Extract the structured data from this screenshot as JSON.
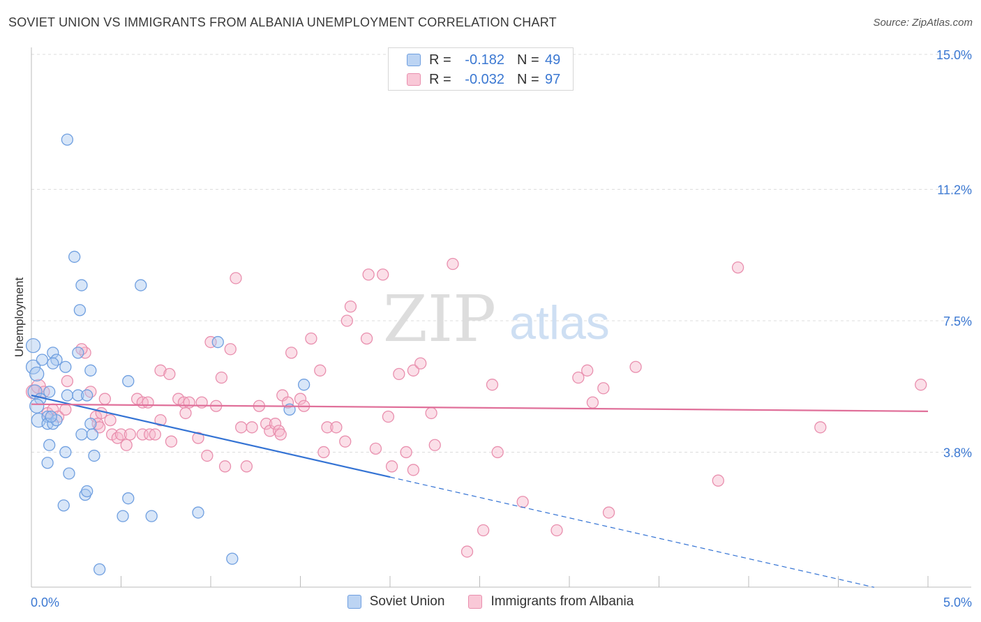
{
  "title": "SOVIET UNION VS IMMIGRANTS FROM ALBANIA UNEMPLOYMENT CORRELATION CHART",
  "source": "Source: ZipAtlas.com",
  "watermark": {
    "zip": "ZIP",
    "atlas": "atlas"
  },
  "legend": {
    "r_label": "R =",
    "n_label": "N =",
    "rows": [
      {
        "r": "-0.182",
        "n": "49"
      },
      {
        "r": "-0.032",
        "n": "97"
      }
    ]
  },
  "chart_data": {
    "type": "scatter",
    "title": "SOVIET UNION VS IMMIGRANTS FROM ALBANIA UNEMPLOYMENT CORRELATION CHART",
    "xlabel": "",
    "ylabel": "Unemployment",
    "xlim": [
      0,
      5.0
    ],
    "ylim": [
      0,
      15.0
    ],
    "x_ticks": [
      0,
      5.0
    ],
    "x_tick_labels": [
      "0.0%",
      "5.0%"
    ],
    "y_ticks": [
      3.8,
      7.5,
      11.2,
      15.0
    ],
    "y_tick_labels": [
      "3.8%",
      "7.5%",
      "11.2%",
      "15.0%"
    ],
    "grid": true,
    "legend_position": "top-center",
    "colors": {
      "soviet_fill": "#a9c8f0",
      "soviet_stroke": "#6f9fe0",
      "soviet_line": "#3473d4",
      "albania_fill": "#f7b8cc",
      "albania_stroke": "#e98fae",
      "albania_line": "#e0709a"
    },
    "series": [
      {
        "name": "Soviet Union",
        "r": -0.182,
        "n": 49,
        "trend": {
          "x1": 0.0,
          "y1": 5.4,
          "x2": 2.0,
          "y2": 3.1,
          "x_dash_end": 4.7
        },
        "points": [
          [
            0.01,
            6.8
          ],
          [
            0.01,
            6.2
          ],
          [
            0.03,
            6.0
          ],
          [
            0.02,
            5.5
          ],
          [
            0.05,
            5.3
          ],
          [
            0.03,
            5.1
          ],
          [
            0.06,
            6.4
          ],
          [
            0.12,
            6.6
          ],
          [
            0.14,
            6.4
          ],
          [
            0.12,
            6.3
          ],
          [
            0.19,
            6.2
          ],
          [
            0.26,
            6.6
          ],
          [
            0.33,
            6.1
          ],
          [
            0.1,
            5.5
          ],
          [
            0.2,
            5.4
          ],
          [
            0.26,
            5.4
          ],
          [
            0.31,
            5.4
          ],
          [
            0.54,
            5.8
          ],
          [
            0.04,
            4.7
          ],
          [
            0.09,
            4.8
          ],
          [
            0.09,
            4.6
          ],
          [
            0.12,
            4.6
          ],
          [
            0.14,
            4.7
          ],
          [
            0.11,
            4.8
          ],
          [
            0.28,
            4.3
          ],
          [
            0.33,
            4.6
          ],
          [
            0.34,
            4.3
          ],
          [
            0.1,
            4.0
          ],
          [
            0.19,
            3.8
          ],
          [
            0.35,
            3.7
          ],
          [
            0.09,
            3.5
          ],
          [
            0.21,
            3.2
          ],
          [
            0.3,
            2.6
          ],
          [
            0.31,
            2.7
          ],
          [
            0.18,
            2.3
          ],
          [
            0.54,
            2.5
          ],
          [
            0.51,
            2.0
          ],
          [
            0.67,
            2.0
          ],
          [
            0.93,
            2.1
          ],
          [
            0.2,
            12.6
          ],
          [
            0.24,
            9.3
          ],
          [
            0.28,
            8.5
          ],
          [
            0.27,
            7.8
          ],
          [
            0.61,
            8.5
          ],
          [
            1.04,
            6.9
          ],
          [
            1.52,
            5.7
          ],
          [
            1.44,
            5.0
          ],
          [
            1.12,
            0.8
          ],
          [
            0.38,
            0.5
          ]
        ]
      },
      {
        "name": "Immigrants from Albania",
        "r": -0.032,
        "n": 97,
        "trend": {
          "x1": 0.0,
          "y1": 5.15,
          "x2": 5.0,
          "y2": 4.95
        },
        "points": [
          [
            0.01,
            5.5
          ],
          [
            0.04,
            5.65
          ],
          [
            0.07,
            5.5
          ],
          [
            0.09,
            4.9
          ],
          [
            0.12,
            5.0
          ],
          [
            0.15,
            4.8
          ],
          [
            0.19,
            5.0
          ],
          [
            0.2,
            5.8
          ],
          [
            0.33,
            5.5
          ],
          [
            0.3,
            6.6
          ],
          [
            0.28,
            6.7
          ],
          [
            0.36,
            4.8
          ],
          [
            0.37,
            4.6
          ],
          [
            0.39,
            4.9
          ],
          [
            0.41,
            5.3
          ],
          [
            0.44,
            4.7
          ],
          [
            0.45,
            4.3
          ],
          [
            0.48,
            4.2
          ],
          [
            0.5,
            4.3
          ],
          [
            0.53,
            4.0
          ],
          [
            0.55,
            4.3
          ],
          [
            0.59,
            5.3
          ],
          [
            0.62,
            5.2
          ],
          [
            0.62,
            4.3
          ],
          [
            0.65,
            5.2
          ],
          [
            0.66,
            4.3
          ],
          [
            0.69,
            4.3
          ],
          [
            0.72,
            4.7
          ],
          [
            0.72,
            6.1
          ],
          [
            0.77,
            6.0
          ],
          [
            0.78,
            4.1
          ],
          [
            0.82,
            5.3
          ],
          [
            0.85,
            5.2
          ],
          [
            0.86,
            4.9
          ],
          [
            0.88,
            5.2
          ],
          [
            0.93,
            4.2
          ],
          [
            0.95,
            5.2
          ],
          [
            0.98,
            3.7
          ],
          [
            1.0,
            6.9
          ],
          [
            1.03,
            5.1
          ],
          [
            1.06,
            5.9
          ],
          [
            1.08,
            3.4
          ],
          [
            1.11,
            6.7
          ],
          [
            1.14,
            8.7
          ],
          [
            1.17,
            4.5
          ],
          [
            1.2,
            3.4
          ],
          [
            1.23,
            4.5
          ],
          [
            1.27,
            5.1
          ],
          [
            1.31,
            4.6
          ],
          [
            1.33,
            4.4
          ],
          [
            1.36,
            4.6
          ],
          [
            1.38,
            4.4
          ],
          [
            1.39,
            4.3
          ],
          [
            1.4,
            5.4
          ],
          [
            1.43,
            5.2
          ],
          [
            1.45,
            6.6
          ],
          [
            1.5,
            5.3
          ],
          [
            1.52,
            5.1
          ],
          [
            1.56,
            7.0
          ],
          [
            1.61,
            6.1
          ],
          [
            1.63,
            3.8
          ],
          [
            1.65,
            4.5
          ],
          [
            1.7,
            4.5
          ],
          [
            1.75,
            4.1
          ],
          [
            1.76,
            7.5
          ],
          [
            1.78,
            7.9
          ],
          [
            1.87,
            7.0
          ],
          [
            1.88,
            8.8
          ],
          [
            1.92,
            3.9
          ],
          [
            1.96,
            8.8
          ],
          [
            1.99,
            4.8
          ],
          [
            2.01,
            3.4
          ],
          [
            2.05,
            6.0
          ],
          [
            2.09,
            3.8
          ],
          [
            2.13,
            3.3
          ],
          [
            2.13,
            6.1
          ],
          [
            2.17,
            6.3
          ],
          [
            2.23,
            4.9
          ],
          [
            2.25,
            4.0
          ],
          [
            2.35,
            9.1
          ],
          [
            2.43,
            1.0
          ],
          [
            2.52,
            1.6
          ],
          [
            2.57,
            5.7
          ],
          [
            2.6,
            3.8
          ],
          [
            2.74,
            2.4
          ],
          [
            2.93,
            1.6
          ],
          [
            3.05,
            5.9
          ],
          [
            3.1,
            6.1
          ],
          [
            3.13,
            5.2
          ],
          [
            3.19,
            5.6
          ],
          [
            3.22,
            2.1
          ],
          [
            3.37,
            6.2
          ],
          [
            3.83,
            3.0
          ],
          [
            3.94,
            9.0
          ],
          [
            4.4,
            4.5
          ],
          [
            4.96,
            5.7
          ],
          [
            0.38,
            4.5
          ]
        ]
      }
    ]
  }
}
